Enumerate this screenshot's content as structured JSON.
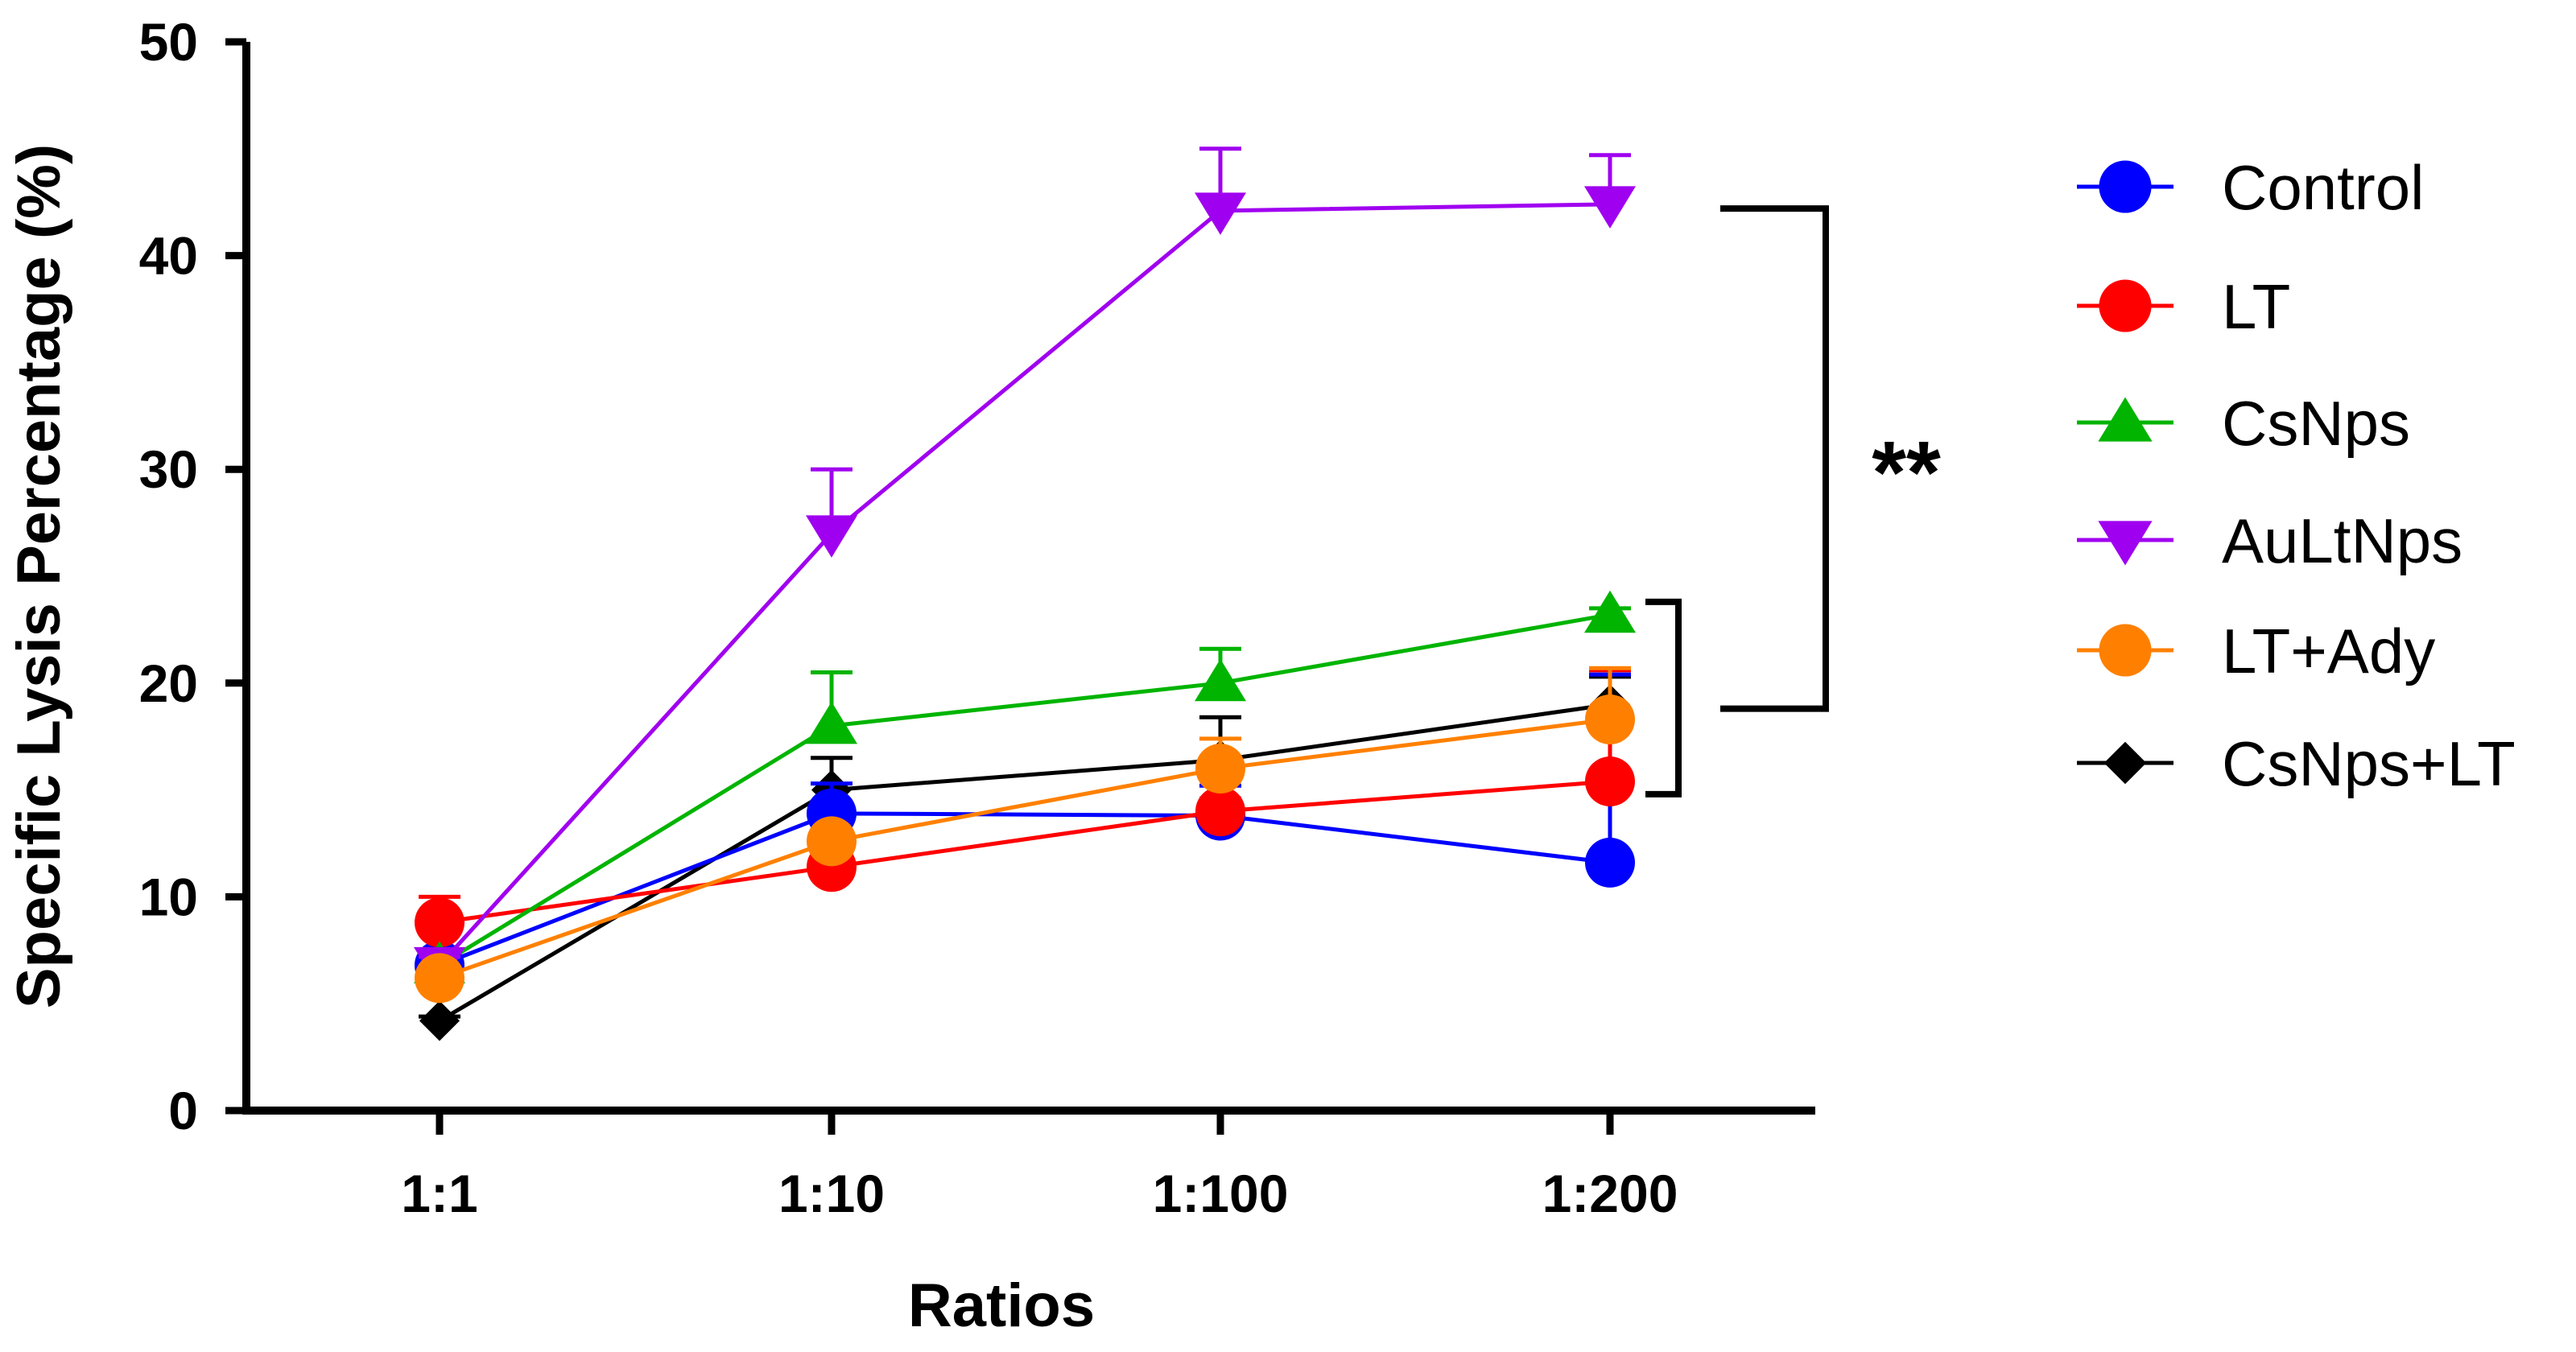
{
  "chart_data": {
    "type": "line",
    "title": "",
    "xlabel": "Ratios",
    "ylabel": "Specific Lysis Percentage (%)",
    "categories": [
      "1:1",
      "1:10",
      "1:100",
      "1:200"
    ],
    "ylim": [
      0,
      50
    ],
    "yticks": [
      "0",
      "10",
      "20",
      "30",
      "40",
      "50"
    ],
    "legend_position": "right",
    "series": [
      {
        "name": "Control",
        "color": "#0000ff",
        "marker": "circle",
        "values": [
          6.8,
          13.9,
          13.8,
          11.6
        ],
        "errors": [
          0.4,
          1.4,
          1.4,
          8.8
        ]
      },
      {
        "name": "LT",
        "color": "#ff0000",
        "marker": "circle",
        "values": [
          8.8,
          11.4,
          14.0,
          15.4
        ],
        "errors": [
          1.2,
          0.6,
          0.6,
          5.2
        ]
      },
      {
        "name": "CsNps",
        "color": "#00b400",
        "marker": "triangle-up",
        "values": [
          6.8,
          18.0,
          20.0,
          23.2
        ],
        "errors": [
          0.4,
          2.5,
          1.6,
          0.3
        ]
      },
      {
        "name": "AuLtNps",
        "color": "#a000f0",
        "marker": "triangle-down",
        "values": [
          6.8,
          27.0,
          42.1,
          42.4
        ],
        "errors": [
          0.4,
          3.0,
          2.9,
          2.3
        ]
      },
      {
        "name": "LT+Ady",
        "color": "#ff8000",
        "marker": "circle",
        "values": [
          6.2,
          12.6,
          16.0,
          18.3
        ],
        "errors": [
          0.3,
          0.5,
          1.4,
          2.4
        ]
      },
      {
        "name": "CsNps+LT",
        "color": "#000000",
        "marker": "diamond",
        "values": [
          4.2,
          15.0,
          16.4,
          19.0
        ],
        "errors": [
          0.2,
          1.5,
          2.0,
          1.3
        ]
      }
    ],
    "significance": {
      "label": "**",
      "inner_bracket_y": [
        14.8,
        23.8
      ],
      "outer_bracket_y": [
        18.8,
        42.2
      ]
    }
  }
}
